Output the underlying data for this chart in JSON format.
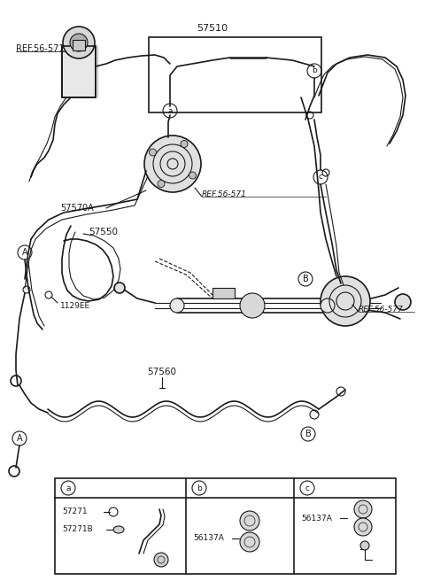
{
  "bg_color": "#ffffff",
  "line_color": "#1a1a1a",
  "fig_width": 4.8,
  "fig_height": 6.56,
  "dpi": 100,
  "labels": {
    "ref_56_571_top": "REF.56-571",
    "57510": "57510",
    "57570A": "57570A",
    "ref_56_571_mid": "REF.56-571",
    "57550": "57550",
    "1129EE": "1129EE",
    "B_label_right": "B",
    "ref_56_577": "REF.56-577",
    "57560": "57560",
    "A_label_left_top": "A",
    "A_label_left_bot": "A",
    "B_label_bot": "B",
    "a_box": "a",
    "b_box": "b",
    "c_box": "c",
    "57271": "57271",
    "57271B": "57271B",
    "56137A_b": "56137A",
    "56137A_c": "56137A"
  }
}
